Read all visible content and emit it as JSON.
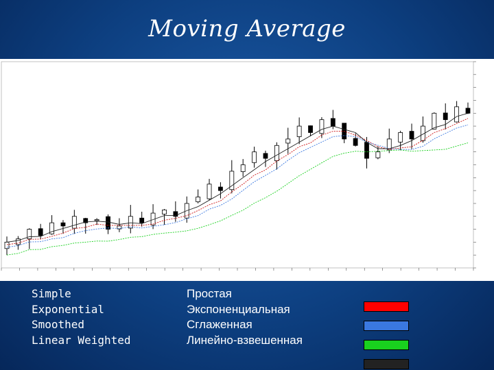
{
  "title": "Moving Average",
  "legend": {
    "items": [
      {
        "en": "Simple",
        "ru": "Простая",
        "color": "#ff0000"
      },
      {
        "en": "Exponential",
        "ru": "Экспоненциальная",
        "color": "#3a78e0"
      },
      {
        "en": "Smoothed",
        "ru": "Сглаженная",
        "color": "#19d11e"
      },
      {
        "en": "Linear Weighted",
        "ru": "Линейно-взвешенная",
        "color": "#222222"
      }
    ]
  },
  "chart_data": {
    "type": "line",
    "description_series": [
      "price candles",
      "moving averages"
    ],
    "candles_close": [
      1.04,
      1.045,
      1.06,
      1.05,
      1.07,
      1.065,
      1.08,
      1.07,
      1.075,
      1.06,
      1.065,
      1.08,
      1.07,
      1.085,
      1.09,
      1.08,
      1.1,
      1.11,
      1.13,
      1.12,
      1.15,
      1.16,
      1.18,
      1.17,
      1.19,
      1.2,
      1.22,
      1.21,
      1.23,
      1.22,
      1.2,
      1.19,
      1.17,
      1.18,
      1.2,
      1.21,
      1.2,
      1.22,
      1.24,
      1.23,
      1.25,
      1.24
    ],
    "ma_colors": [
      "#cc1111",
      "#3a78e0",
      "#19d11e",
      "#222222"
    ]
  }
}
